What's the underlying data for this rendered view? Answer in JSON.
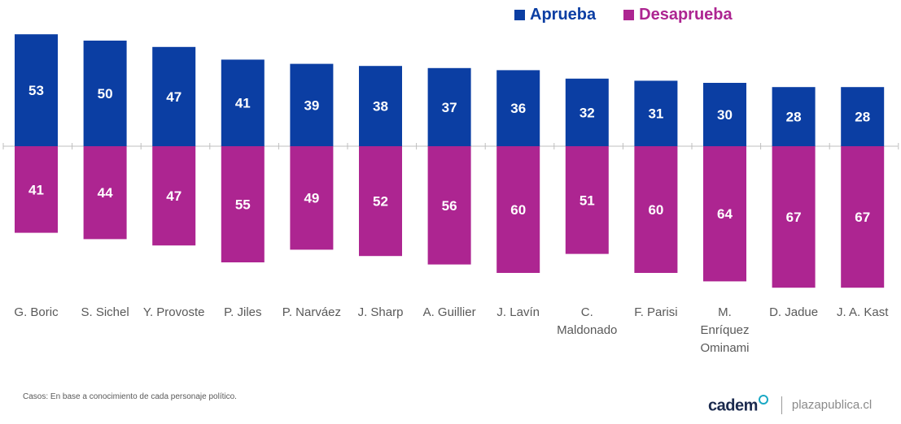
{
  "legend": {
    "approve": {
      "label": "Aprueba",
      "color": "#0b3ea3"
    },
    "disapprove": {
      "label": "Desaprueba",
      "color": "#ad2591"
    }
  },
  "chart_data": {
    "type": "bar",
    "title": "",
    "xlabel": "",
    "ylabel": "",
    "categories": [
      "G. Boric",
      "S. Sichel",
      "Y. Provoste",
      "P. Jiles",
      "P. Narváez",
      "J. Sharp",
      "A. Guillier",
      "J. Lavín",
      "C.\nMaldonado",
      "F. Parisi",
      "M.\nEnríquez\nOminami",
      "D. Jadue",
      "J. A. Kast"
    ],
    "series": [
      {
        "name": "Aprueba",
        "color": "#0b3ea3",
        "values": [
          53,
          50,
          47,
          41,
          39,
          38,
          37,
          36,
          32,
          31,
          30,
          28,
          28
        ]
      },
      {
        "name": "Desaprueba",
        "color": "#ad2591",
        "values": [
          41,
          44,
          47,
          55,
          49,
          52,
          56,
          60,
          51,
          60,
          64,
          67,
          67
        ]
      }
    ],
    "layout": "diverging: Aprueba above axis, Desaprueba below axis"
  },
  "footnote": "Casos: En base a conocimiento de cada personaje político.",
  "footer": {
    "logo_text": "cadem",
    "site": "plazapublica.cl"
  }
}
